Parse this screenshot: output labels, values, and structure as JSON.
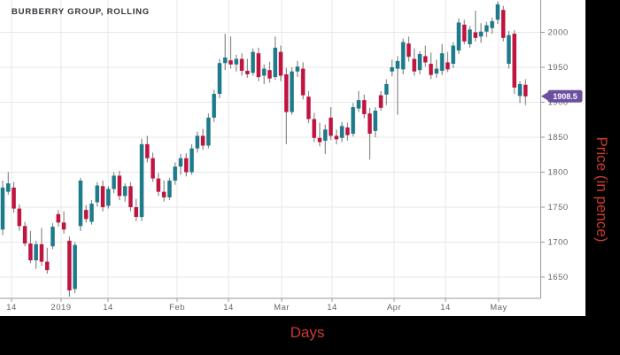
{
  "window": {
    "background": "#000000",
    "panel_background": "#ffffff"
  },
  "chart_data": {
    "type": "candlestick",
    "title": "BURBERRY GROUP, ROLLING",
    "xlabel": "Days",
    "ylabel": "Price (in pence)",
    "last_price": "1908.5",
    "ylim": [
      1593,
      2046
    ],
    "grid": true,
    "y_ticks": [
      2000,
      1950,
      1900,
      1850,
      1800,
      1750,
      1700,
      1650
    ],
    "x_ticks": [
      {
        "x": 13,
        "label": "14"
      },
      {
        "x": 69,
        "label": "2019"
      },
      {
        "x": 122,
        "label": "14"
      },
      {
        "x": 200,
        "label": "Feb"
      },
      {
        "x": 258,
        "label": "14"
      },
      {
        "x": 318,
        "label": "Mar"
      },
      {
        "x": 375,
        "label": "14"
      },
      {
        "x": 445,
        "label": "Apr"
      },
      {
        "x": 503,
        "label": "14"
      },
      {
        "x": 563,
        "label": "May"
      }
    ],
    "colors": {
      "up": "#1d7b8b",
      "down": "#c01441",
      "wick": "#737373",
      "grid": "#e7e7e7",
      "axis": "#9a9a9a",
      "tick_label": "#666666",
      "title": "#2f3338",
      "axis_label": "#cb3b31",
      "badge": "#6b4fa0",
      "badge_text": "#ffffff"
    },
    "candles": [
      [
        1718,
        1788,
        1710,
        1778
      ],
      [
        1772,
        1800,
        1768,
        1784
      ],
      [
        1778,
        1786,
        1742,
        1748
      ],
      [
        1748,
        1754,
        1716,
        1723
      ],
      [
        1723,
        1729,
        1694,
        1698
      ],
      [
        1698,
        1716,
        1670,
        1674
      ],
      [
        1674,
        1702,
        1662,
        1697
      ],
      [
        1697,
        1720,
        1666,
        1672
      ],
      [
        1672,
        1692,
        1655,
        1660
      ],
      [
        1694,
        1727,
        1690,
        1722
      ],
      [
        1740,
        1746,
        1722,
        1728
      ],
      [
        1728,
        1744,
        1712,
        1718
      ],
      [
        1702,
        1708,
        1622,
        1631
      ],
      [
        1633,
        1700,
        1627,
        1696
      ],
      [
        1723,
        1792,
        1716,
        1788
      ],
      [
        1746,
        1753,
        1728,
        1733
      ],
      [
        1729,
        1760,
        1725,
        1755
      ],
      [
        1757,
        1786,
        1751,
        1781
      ],
      [
        1780,
        1788,
        1744,
        1750
      ],
      [
        1752,
        1780,
        1748,
        1776
      ],
      [
        1776,
        1800,
        1770,
        1795
      ],
      [
        1795,
        1802,
        1760,
        1766
      ],
      [
        1766,
        1784,
        1758,
        1780
      ],
      [
        1780,
        1786,
        1744,
        1750
      ],
      [
        1750,
        1762,
        1730,
        1736
      ],
      [
        1736,
        1848,
        1730,
        1840
      ],
      [
        1840,
        1852,
        1814,
        1820
      ],
      [
        1820,
        1828,
        1786,
        1791
      ],
      [
        1791,
        1799,
        1766,
        1772
      ],
      [
        1772,
        1788,
        1758,
        1764
      ],
      [
        1764,
        1792,
        1760,
        1788
      ],
      [
        1788,
        1814,
        1782,
        1808
      ],
      [
        1808,
        1826,
        1796,
        1820
      ],
      [
        1820,
        1827,
        1794,
        1800
      ],
      [
        1800,
        1840,
        1796,
        1834
      ],
      [
        1834,
        1858,
        1828,
        1852
      ],
      [
        1852,
        1862,
        1832,
        1838
      ],
      [
        1838,
        1884,
        1834,
        1878
      ],
      [
        1878,
        1918,
        1872,
        1912
      ],
      [
        1912,
        1962,
        1906,
        1956
      ],
      [
        1956,
        1998,
        1946,
        1964
      ],
      [
        1960,
        1994,
        1948,
        1954
      ],
      [
        1954,
        1968,
        1944,
        1962
      ],
      [
        1962,
        1970,
        1938,
        1945
      ],
      [
        1945,
        1962,
        1935,
        1940
      ],
      [
        1942,
        1977,
        1938,
        1972
      ],
      [
        1970,
        1978,
        1930,
        1936
      ],
      [
        1938,
        1954,
        1926,
        1948
      ],
      [
        1946,
        1958,
        1928,
        1934
      ],
      [
        1936,
        1994,
        1932,
        1978
      ],
      [
        1972,
        1981,
        1930,
        1938
      ],
      [
        1940,
        1949,
        1840,
        1886
      ],
      [
        1886,
        1950,
        1882,
        1944
      ],
      [
        1944,
        1959,
        1936,
        1951
      ],
      [
        1948,
        1957,
        1904,
        1910
      ],
      [
        1908,
        1916,
        1870,
        1876
      ],
      [
        1876,
        1885,
        1843,
        1849
      ],
      [
        1849,
        1871,
        1837,
        1843
      ],
      [
        1845,
        1868,
        1826,
        1861
      ],
      [
        1878,
        1893,
        1846,
        1852
      ],
      [
        1852,
        1861,
        1840,
        1847
      ],
      [
        1849,
        1872,
        1843,
        1866
      ],
      [
        1864,
        1871,
        1845,
        1853
      ],
      [
        1855,
        1899,
        1851,
        1893
      ],
      [
        1891,
        1916,
        1886,
        1903
      ],
      [
        1903,
        1911,
        1877,
        1883
      ],
      [
        1884,
        1892,
        1818,
        1855
      ],
      [
        1859,
        1893,
        1850,
        1888
      ],
      [
        1910,
        1916,
        1888,
        1892
      ],
      [
        1911,
        1933,
        1896,
        1926
      ],
      [
        1944,
        1961,
        1937,
        1950
      ],
      [
        1948,
        1966,
        1882,
        1959
      ],
      [
        1947,
        1991,
        1940,
        1986
      ],
      [
        1984,
        1994,
        1958,
        1965
      ],
      [
        1962,
        1977,
        1938,
        1944
      ],
      [
        1946,
        1973,
        1940,
        1969
      ],
      [
        1966,
        1981,
        1951,
        1957
      ],
      [
        1955,
        1971,
        1933,
        1939
      ],
      [
        1941,
        1961,
        1935,
        1948
      ],
      [
        1945,
        1983,
        1939,
        1970
      ],
      [
        1957,
        1972,
        1943,
        1947
      ],
      [
        1955,
        1986,
        1949,
        1981
      ],
      [
        1974,
        2020,
        1969,
        2014
      ],
      [
        2011,
        2018,
        1983,
        1987
      ],
      [
        1983,
        2009,
        1978,
        2004
      ],
      [
        2000,
        2031,
        1987,
        1992
      ],
      [
        1994,
        2013,
        1985,
        2001
      ],
      [
        2001,
        2015,
        1993,
        2010
      ],
      [
        2006,
        2021,
        1998,
        2016
      ],
      [
        2018,
        2044,
        2012,
        2040
      ],
      [
        2032,
        2038,
        1987,
        1992
      ],
      [
        1955,
        2002,
        1948,
        1996
      ],
      [
        1998,
        2003,
        1912,
        1921
      ],
      [
        1909,
        1930,
        1899,
        1926
      ],
      [
        1925,
        1933,
        1896,
        1908.5
      ]
    ]
  }
}
